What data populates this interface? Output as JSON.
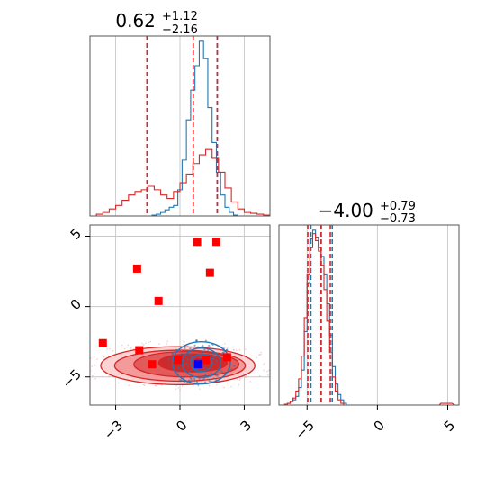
{
  "colors": {
    "blue": "#1f77b4",
    "red": "#d62728",
    "red_marker": "#ff0000",
    "blue_marker": "#0000ff",
    "fill_levels": [
      "#fbd3d3",
      "#f39a9a",
      "#e35a5a",
      "#cf2a2a"
    ]
  },
  "chart_data": [
    {
      "type": "histogram",
      "panel": "top-left",
      "title": {
        "value": "0.62",
        "upper": "+1.12",
        "lower": "−2.16"
      },
      "xlim": [
        -4.2,
        4.2
      ],
      "grid": true,
      "series": [
        {
          "color": "blue",
          "quantiles": [
            -1.54,
            0.62,
            1.74
          ],
          "bins": [
            [
              -1.5,
              0.0
            ],
            [
              -1.3,
              0.005
            ],
            [
              -1.1,
              0.01
            ],
            [
              -0.9,
              0.02
            ],
            [
              -0.7,
              0.035
            ],
            [
              -0.5,
              0.05
            ],
            [
              -0.3,
              0.06
            ],
            [
              -0.1,
              0.15
            ],
            [
              0.1,
              0.32
            ],
            [
              0.3,
              0.55
            ],
            [
              0.5,
              0.72
            ],
            [
              0.7,
              0.86
            ],
            [
              0.9,
              1.0
            ],
            [
              1.1,
              0.9
            ],
            [
              1.3,
              0.62
            ],
            [
              1.5,
              0.42
            ],
            [
              1.7,
              0.25
            ],
            [
              1.9,
              0.12
            ],
            [
              2.1,
              0.05
            ],
            [
              2.3,
              0.02
            ],
            [
              2.5,
              0.005
            ],
            [
              2.7,
              0.0
            ]
          ]
        },
        {
          "color": "red",
          "quantiles": [
            -1.54,
            0.62,
            1.74
          ],
          "bins": [
            [
              -4.2,
              0.0
            ],
            [
              -3.9,
              0.01
            ],
            [
              -3.6,
              0.02
            ],
            [
              -3.3,
              0.04
            ],
            [
              -3.0,
              0.06
            ],
            [
              -2.7,
              0.09
            ],
            [
              -2.4,
              0.12
            ],
            [
              -2.1,
              0.14
            ],
            [
              -1.8,
              0.15
            ],
            [
              -1.5,
              0.17
            ],
            [
              -1.2,
              0.15
            ],
            [
              -0.9,
              0.12
            ],
            [
              -0.6,
              0.1
            ],
            [
              -0.3,
              0.14
            ],
            [
              0.0,
              0.19
            ],
            [
              0.3,
              0.24
            ],
            [
              0.6,
              0.3
            ],
            [
              0.9,
              0.35
            ],
            [
              1.2,
              0.38
            ],
            [
              1.5,
              0.33
            ],
            [
              1.8,
              0.25
            ],
            [
              2.1,
              0.16
            ],
            [
              2.4,
              0.08
            ],
            [
              2.7,
              0.04
            ],
            [
              3.0,
              0.02
            ],
            [
              3.3,
              0.015
            ],
            [
              3.6,
              0.01
            ],
            [
              3.9,
              0.005
            ]
          ]
        }
      ]
    },
    {
      "type": "contour-scatter",
      "panel": "bottom-left",
      "xlim": [
        -4.2,
        4.2
      ],
      "ylim": [
        -7,
        5.8
      ],
      "xticks": [
        "−3",
        "0",
        "3"
      ],
      "yticks": [
        "−5",
        "0",
        "5"
      ],
      "grid": true,
      "red_markers": [
        [
          -3.6,
          -2.6
        ],
        [
          -2.0,
          2.7
        ],
        [
          -1.9,
          -3.1
        ],
        [
          -1.0,
          0.4
        ],
        [
          0.8,
          4.6
        ],
        [
          1.7,
          4.6
        ],
        [
          1.4,
          2.4
        ],
        [
          -1.3,
          -4.1
        ],
        [
          0.9,
          -4.0
        ],
        [
          1.2,
          -3.8
        ],
        [
          2.2,
          -3.6
        ],
        [
          -0.1,
          -3.8
        ]
      ],
      "blue_marker": [
        0.85,
        -4.1
      ],
      "red_levels": [
        {
          "cx": -0.1,
          "cy": -4.2,
          "rx": 3.6,
          "ry": 1.35
        },
        {
          "cx": 0.0,
          "cy": -4.2,
          "rx": 3.05,
          "ry": 1.1
        },
        {
          "cx": 0.3,
          "cy": -4.1,
          "rx": 2.45,
          "ry": 0.9
        },
        {
          "cx": 0.6,
          "cy": -4.0,
          "rx": 1.6,
          "ry": 0.65
        }
      ],
      "blue_levels": [
        {
          "cx": 1.0,
          "cy": -4.0,
          "rx": 1.35,
          "ry": 1.5
        },
        {
          "cx": 1.0,
          "cy": -4.0,
          "rx": 0.9,
          "ry": 1.05
        },
        {
          "cx": 1.0,
          "cy": -4.0,
          "rx": 0.5,
          "ry": 0.6
        }
      ]
    },
    {
      "type": "histogram",
      "panel": "bottom-right",
      "title": {
        "value": "−4.00",
        "upper": "+0.79",
        "lower": "−0.73"
      },
      "xlim": [
        -7,
        5.8
      ],
      "xticks": [
        "−5",
        "0",
        "5"
      ],
      "grid": true,
      "series": [
        {
          "color": "blue",
          "quantiles": [
            -4.73,
            -4.0,
            -3.21
          ],
          "bins": [
            [
              -6.6,
              0.0
            ],
            [
              -6.4,
              0.01
            ],
            [
              -6.2,
              0.02
            ],
            [
              -6.0,
              0.03
            ],
            [
              -5.8,
              0.05
            ],
            [
              -5.6,
              0.1
            ],
            [
              -5.4,
              0.2
            ],
            [
              -5.2,
              0.42
            ],
            [
              -5.0,
              0.7
            ],
            [
              -4.8,
              0.95
            ],
            [
              -4.6,
              1.0
            ],
            [
              -4.4,
              0.96
            ],
            [
              -4.2,
              0.9
            ],
            [
              -4.0,
              0.85
            ],
            [
              -3.8,
              0.75
            ],
            [
              -3.6,
              0.58
            ],
            [
              -3.4,
              0.4
            ],
            [
              -3.2,
              0.22
            ],
            [
              -3.0,
              0.12
            ],
            [
              -2.8,
              0.06
            ],
            [
              -2.6,
              0.03
            ],
            [
              -2.4,
              0.01
            ],
            [
              -2.2,
              0.0
            ]
          ]
        },
        {
          "color": "red",
          "quantiles": [
            -4.95,
            -4.0,
            -3.35
          ],
          "bins": [
            [
              -6.8,
              0.0
            ],
            [
              -6.6,
              0.005
            ],
            [
              -6.4,
              0.01
            ],
            [
              -6.2,
              0.02
            ],
            [
              -6.0,
              0.04
            ],
            [
              -5.8,
              0.08
            ],
            [
              -5.6,
              0.15
            ],
            [
              -5.4,
              0.28
            ],
            [
              -5.2,
              0.5
            ],
            [
              -5.0,
              0.75
            ],
            [
              -4.8,
              0.9
            ],
            [
              -4.6,
              0.98
            ],
            [
              -4.4,
              0.94
            ],
            [
              -4.2,
              0.88
            ],
            [
              -4.0,
              0.8
            ],
            [
              -3.8,
              0.66
            ],
            [
              -3.6,
              0.48
            ],
            [
              -3.4,
              0.3
            ],
            [
              -3.2,
              0.16
            ],
            [
              -3.0,
              0.08
            ],
            [
              -2.8,
              0.03
            ],
            [
              -2.6,
              0.01
            ],
            [
              -2.4,
              0.0
            ],
            [
              4.2,
              0.0
            ],
            [
              4.5,
              0.01
            ],
            [
              5.1,
              0.01
            ],
            [
              5.5,
              0.0
            ]
          ]
        }
      ]
    }
  ]
}
